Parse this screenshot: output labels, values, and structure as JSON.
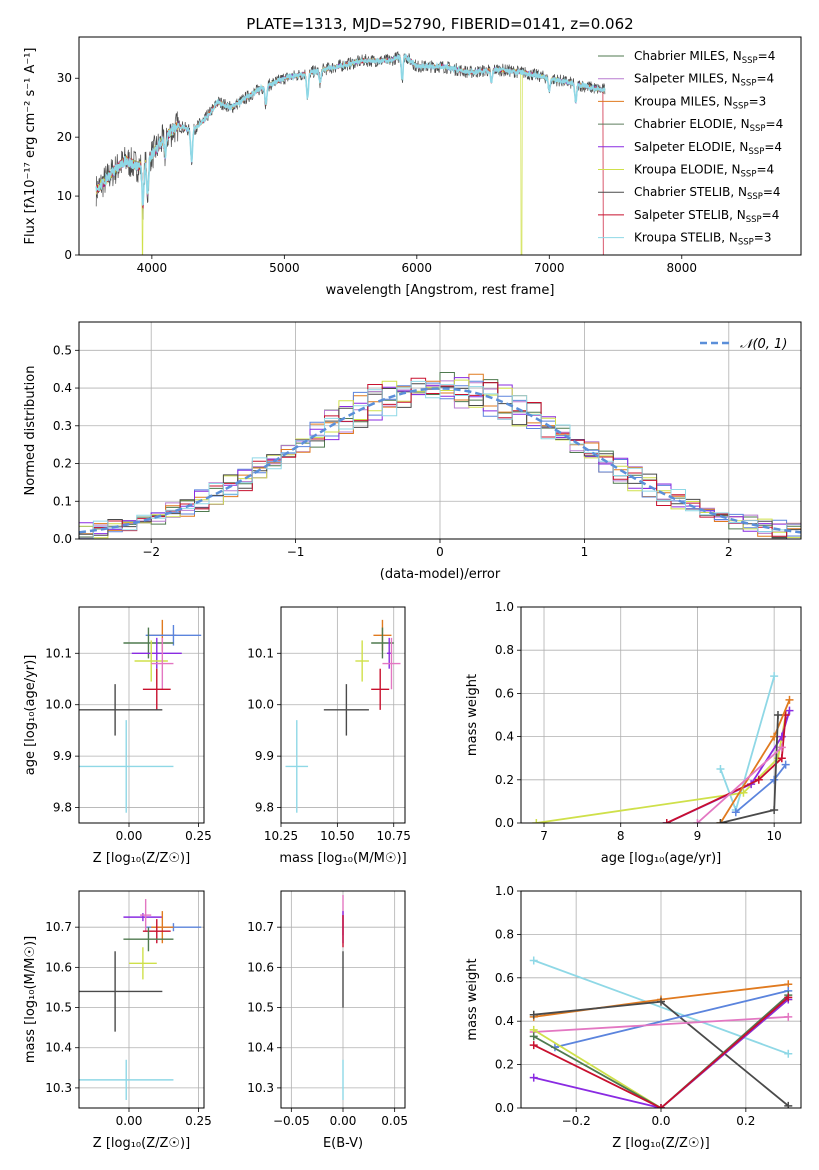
{
  "title": "PLATE=1313, MJD=52790, FIBERID=0141, z=0.062",
  "colors": {
    "chabrier_miles": "#4f7a4f",
    "salpeter_miles": "#b87bd0",
    "kroupa_miles": "#e07a1f",
    "chabrier_elodie": "#5d7d5d",
    "salpeter_elodie": "#8a2be2",
    "kroupa_elodie": "#cfe04a",
    "chabrier_stelib": "#4a4a4a",
    "salpeter_stelib": "#c8102e",
    "kroupa_stelib": "#8fd8e6",
    "pink": "#e377c2",
    "blue": "#5b84dd",
    "normal_curve": "#5b8fd9",
    "axis": "#000000",
    "grid": "#b0b0b0"
  },
  "chart_data": [
    {
      "id": "spectrum",
      "type": "line",
      "xlabel": "wavelength [Angstrom, rest frame]",
      "ylabel": "Flux [fλ10⁻¹⁷ erg cm⁻² s⁻¹ A⁻¹]",
      "xlim": [
        3450,
        8900
      ],
      "ylim": [
        0,
        37
      ],
      "xticks": [
        4000,
        5000,
        6000,
        7000,
        8000
      ],
      "yticks": [
        0,
        10,
        20,
        30
      ],
      "grid": false,
      "legend": [
        {
          "label": "Chabrier MILES, N",
          "sub": "SSP",
          "suffix": "=4",
          "color_key": "chabrier_miles"
        },
        {
          "label": "Salpeter MILES, N",
          "sub": "SSP",
          "suffix": "=4",
          "color_key": "salpeter_miles"
        },
        {
          "label": "Kroupa MILES, N",
          "sub": "SSP",
          "suffix": "=3",
          "color_key": "kroupa_miles"
        },
        {
          "label": "Chabrier ELODIE, N",
          "sub": "SSP",
          "suffix": "=4",
          "color_key": "chabrier_elodie"
        },
        {
          "label": "Salpeter ELODIE, N",
          "sub": "SSP",
          "suffix": "=4",
          "color_key": "salpeter_elodie"
        },
        {
          "label": "Kroupa ELODIE, N",
          "sub": "SSP",
          "suffix": "=4",
          "color_key": "kroupa_elodie"
        },
        {
          "label": "Chabrier STELIB, N",
          "sub": "SSP",
          "suffix": "=4",
          "color_key": "chabrier_stelib"
        },
        {
          "label": "Salpeter STELIB, N",
          "sub": "SSP",
          "suffix": "=4",
          "color_key": "salpeter_stelib"
        },
        {
          "label": "Kroupa STELIB, N",
          "sub": "SSP",
          "suffix": "=3",
          "color_key": "kroupa_stelib"
        }
      ],
      "legend_position": "top-right",
      "continuum": {
        "x": [
          3580,
          3700,
          3800,
          3900,
          4000,
          4100,
          4200,
          4300,
          4400,
          4500,
          4600,
          4800,
          5000,
          5200,
          5400,
          5600,
          5800,
          5900,
          6000,
          6200,
          6400,
          6600,
          6800,
          7000,
          7200,
          7400
        ],
        "y": [
          11,
          14,
          16,
          15,
          17,
          20,
          22,
          21,
          23,
          26,
          25,
          28,
          30,
          31,
          32,
          33,
          33,
          34,
          32,
          32,
          31,
          31.5,
          31,
          30,
          29,
          28
        ]
      },
      "absorption_lines": [
        {
          "x": 3933,
          "depth": 7
        },
        {
          "x": 3968,
          "depth": 6
        },
        {
          "x": 4101,
          "depth": 3
        },
        {
          "x": 4300,
          "depth": 5
        },
        {
          "x": 4861,
          "depth": 3
        },
        {
          "x": 5175,
          "depth": 4
        },
        {
          "x": 5270,
          "depth": 2
        },
        {
          "x": 5890,
          "depth": 4
        },
        {
          "x": 6563,
          "depth": 2
        },
        {
          "x": 7000,
          "depth": 2
        },
        {
          "x": 7200,
          "depth": 3
        }
      ],
      "dropouts": [
        {
          "x": 3930,
          "series": "kroupa_elodie"
        },
        {
          "x": 6790,
          "series": "kroupa_elodie"
        },
        {
          "x": 7410,
          "series": "salpeter_stelib"
        }
      ]
    },
    {
      "id": "residual_hist",
      "type": "histogram",
      "xlabel": "(data-model)/error",
      "ylabel": "Normed distribution",
      "xlim": [
        -2.5,
        2.5
      ],
      "ylim": [
        0,
        0.575
      ],
      "xticks": [
        -2,
        -1,
        0,
        1,
        2
      ],
      "yticks": [
        0.0,
        0.1,
        0.2,
        0.3,
        0.4,
        0.5
      ],
      "grid": true,
      "bin_width": 0.1,
      "reference": {
        "label": "𝒩(0, 1)",
        "mean": 0,
        "sigma": 1,
        "style": "dashed"
      },
      "series": [
        {
          "color_key": "chabrier_miles",
          "offset": 0.0
        },
        {
          "color_key": "salpeter_miles",
          "offset": 0.3
        },
        {
          "color_key": "kroupa_miles",
          "offset": 0.6
        },
        {
          "color_key": "blue",
          "offset": 0.9
        },
        {
          "color_key": "salpeter_elodie",
          "offset": 1.2
        },
        {
          "color_key": "kroupa_elodie",
          "offset": 1.5
        },
        {
          "color_key": "chabrier_stelib",
          "offset": 1.8
        },
        {
          "color_key": "salpeter_stelib",
          "offset": 2.1
        },
        {
          "color_key": "kroupa_stelib",
          "offset": 2.4
        }
      ]
    },
    {
      "id": "age_vs_z",
      "type": "errorbar",
      "xlabel": "Z [log₁₀(Z/Z☉)]",
      "ylabel": "age  [log₁₀(age/yr)]",
      "xlim": [
        -0.18,
        0.27
      ],
      "ylim": [
        9.77,
        10.19
      ],
      "xticks": [
        -0.25,
        0.0,
        0.25
      ],
      "xticklabels": [
        "0.25",
        "0.00",
        "0.25"
      ],
      "yticks": [
        9.8,
        9.9,
        10.0,
        10.1
      ],
      "grid": true,
      "points": [
        {
          "x": 0.12,
          "y": 10.135,
          "xerr": 0.05,
          "yerr": 0.03,
          "color_key": "kroupa_miles"
        },
        {
          "x": 0.16,
          "y": 10.135,
          "xerr": 0.1,
          "yerr": 0.02,
          "color_key": "blue"
        },
        {
          "x": 0.07,
          "y": 10.12,
          "xerr": 0.09,
          "yerr": 0.03,
          "color_key": "chabrier_miles"
        },
        {
          "x": 0.1,
          "y": 10.1,
          "xerr": 0.09,
          "yerr": 0.03,
          "color_key": "salpeter_elodie"
        },
        {
          "x": 0.08,
          "y": 10.085,
          "xerr": 0.06,
          "yerr": 0.04,
          "color_key": "kroupa_elodie"
        },
        {
          "x": 0.12,
          "y": 10.08,
          "xerr": 0.04,
          "yerr": 0.05,
          "color_key": "pink"
        },
        {
          "x": 0.1,
          "y": 10.03,
          "xerr": 0.05,
          "yerr": 0.04,
          "color_key": "salpeter_stelib"
        },
        {
          "x": -0.05,
          "y": 9.99,
          "xerr": 0.17,
          "yerr": 0.05,
          "color_key": "chabrier_stelib"
        },
        {
          "x": -0.01,
          "y": 9.88,
          "xerr": 0.17,
          "yerr": 0.09,
          "color_key": "kroupa_stelib"
        }
      ]
    },
    {
      "id": "age_vs_mass",
      "type": "errorbar",
      "xlabel": "mass [log₁₀(M/M☉)]",
      "ylabel": "",
      "xlim": [
        10.25,
        10.8
      ],
      "ylim": [
        9.77,
        10.19
      ],
      "xticks": [
        10.25,
        10.5,
        10.75
      ],
      "xticklabels": [
        "10.25",
        "10.50",
        "10.75"
      ],
      "yticks": [
        9.8,
        9.9,
        10.0,
        10.1
      ],
      "grid": true,
      "points": [
        {
          "x": 10.7,
          "y": 10.135,
          "xerr": 0.04,
          "yerr": 0.03,
          "color_key": "kroupa_miles"
        },
        {
          "x": 10.7,
          "y": 10.12,
          "xerr": 0.05,
          "yerr": 0.03,
          "color_key": "chabrier_miles"
        },
        {
          "x": 10.73,
          "y": 10.1,
          "xerr": 0.01,
          "yerr": 0.03,
          "color_key": "salpeter_elodie"
        },
        {
          "x": 10.61,
          "y": 10.085,
          "xerr": 0.03,
          "yerr": 0.04,
          "color_key": "kroupa_elodie"
        },
        {
          "x": 10.74,
          "y": 10.08,
          "xerr": 0.04,
          "yerr": 0.05,
          "color_key": "pink"
        },
        {
          "x": 10.69,
          "y": 10.03,
          "xerr": 0.04,
          "yerr": 0.04,
          "color_key": "salpeter_stelib"
        },
        {
          "x": 10.54,
          "y": 9.99,
          "xerr": 0.1,
          "yerr": 0.05,
          "color_key": "chabrier_stelib"
        },
        {
          "x": 10.32,
          "y": 9.88,
          "xerr": 0.05,
          "yerr": 0.09,
          "color_key": "kroupa_stelib"
        }
      ]
    },
    {
      "id": "mass_weight_vs_age",
      "type": "line",
      "xlabel": "age  [log₁₀(age/yr)]",
      "ylabel": "mass weight",
      "xlim": [
        6.7,
        10.35
      ],
      "ylim": [
        0,
        1
      ],
      "xticks": [
        7,
        8,
        9,
        10
      ],
      "yticks": [
        0.0,
        0.2,
        0.4,
        0.6,
        0.8,
        1.0
      ],
      "grid": true,
      "series": [
        {
          "color_key": "kroupa_stelib",
          "x": [
            9.3,
            9.5,
            10.0
          ],
          "y": [
            0.25,
            0.06,
            0.68
          ]
        },
        {
          "color_key": "kroupa_elodie",
          "x": [
            6.9,
            9.6,
            10.05,
            10.15
          ],
          "y": [
            0.0,
            0.14,
            0.3,
            0.5
          ]
        },
        {
          "color_key": "salpeter_elodie",
          "x": [
            8.6,
            9.7,
            10.1,
            10.2
          ],
          "y": [
            0.0,
            0.18,
            0.4,
            0.52
          ]
        },
        {
          "color_key": "salpeter_stelib",
          "x": [
            8.6,
            9.8,
            10.1,
            10.15
          ],
          "y": [
            0.0,
            0.2,
            0.3,
            0.5
          ]
        },
        {
          "color_key": "kroupa_miles",
          "x": [
            9.3,
            10.0,
            10.2
          ],
          "y": [
            0.0,
            0.4,
            0.57
          ]
        },
        {
          "color_key": "blue",
          "x": [
            9.5,
            10.0,
            10.15
          ],
          "y": [
            0.05,
            0.2,
            0.27
          ]
        },
        {
          "color_key": "chabrier_stelib",
          "x": [
            9.3,
            10.0,
            10.05
          ],
          "y": [
            0.0,
            0.06,
            0.5
          ]
        },
        {
          "color_key": "pink",
          "x": [
            9.0,
            10.1
          ],
          "y": [
            0.0,
            0.35
          ]
        }
      ]
    },
    {
      "id": "mass_vs_z",
      "type": "errorbar",
      "xlabel": "Z [log₁₀(Z/Z☉)]",
      "ylabel": "mass [log₁₀(M/M☉)]",
      "xlim": [
        -0.18,
        0.27
      ],
      "ylim": [
        10.25,
        10.79
      ],
      "xticks": [
        -0.25,
        0.0,
        0.25
      ],
      "xticklabels": [
        "0.25",
        "0.00",
        "0.25"
      ],
      "yticks": [
        10.3,
        10.4,
        10.5,
        10.6,
        10.7
      ],
      "grid": true,
      "points": [
        {
          "x": 0.16,
          "y": 10.7,
          "xerr": 0.1,
          "yerr": 0.01,
          "color_key": "blue"
        },
        {
          "x": 0.05,
          "y": 10.725,
          "xerr": 0.07,
          "yerr": 0.01,
          "color_key": "salpeter_elodie"
        },
        {
          "x": 0.06,
          "y": 10.73,
          "xerr": 0.02,
          "yerr": 0.04,
          "color_key": "pink"
        },
        {
          "x": 0.12,
          "y": 10.7,
          "xerr": 0.04,
          "yerr": 0.04,
          "color_key": "kroupa_miles"
        },
        {
          "x": 0.1,
          "y": 10.69,
          "xerr": 0.05,
          "yerr": 0.03,
          "color_key": "salpeter_stelib"
        },
        {
          "x": 0.07,
          "y": 10.67,
          "xerr": 0.09,
          "yerr": 0.03,
          "color_key": "chabrier_miles"
        },
        {
          "x": 0.05,
          "y": 10.61,
          "xerr": 0.05,
          "yerr": 0.04,
          "color_key": "kroupa_elodie"
        },
        {
          "x": -0.05,
          "y": 10.54,
          "xerr": 0.17,
          "yerr": 0.1,
          "color_key": "chabrier_stelib"
        },
        {
          "x": -0.01,
          "y": 10.32,
          "xerr": 0.17,
          "yerr": 0.05,
          "color_key": "kroupa_stelib"
        }
      ]
    },
    {
      "id": "mass_vs_ebv",
      "type": "errorbar",
      "xlabel": "E(B-V)",
      "ylabel": "",
      "xlim": [
        -0.06,
        0.06
      ],
      "ylim": [
        10.25,
        10.79
      ],
      "xticks": [
        -0.05,
        0.0,
        0.05
      ],
      "xticklabels": [
        "−0.05",
        "0.00",
        "0.05"
      ],
      "yticks": [
        10.3,
        10.4,
        10.5,
        10.6,
        10.7
      ],
      "grid": true,
      "points": [
        {
          "x": 0.0,
          "y": 10.73,
          "xerr": 0,
          "yerr": 0.05,
          "color_key": "pink"
        },
        {
          "x": 0.0,
          "y": 10.7,
          "xerr": 0,
          "yerr": 0.04,
          "color_key": "salpeter_elodie"
        },
        {
          "x": 0.0,
          "y": 10.69,
          "xerr": 0,
          "yerr": 0.04,
          "color_key": "salpeter_stelib"
        },
        {
          "x": 0.0,
          "y": 10.57,
          "xerr": 0,
          "yerr": 0.07,
          "color_key": "chabrier_stelib"
        },
        {
          "x": 0.0,
          "y": 10.32,
          "xerr": 0,
          "yerr": 0.05,
          "color_key": "kroupa_stelib"
        }
      ]
    },
    {
      "id": "mass_weight_vs_z",
      "type": "line",
      "xlabel": "Z [log₁₀(Z/Z☉)]",
      "ylabel": "mass weight",
      "xlim": [
        -0.33,
        0.33
      ],
      "ylim": [
        0,
        1
      ],
      "xticks": [
        -0.2,
        0.0,
        0.2
      ],
      "xticklabels": [
        "−0.2",
        "0.0",
        "0.2"
      ],
      "yticks": [
        0.0,
        0.2,
        0.4,
        0.6,
        0.8,
        1.0
      ],
      "grid": true,
      "series": [
        {
          "color_key": "kroupa_stelib",
          "x": [
            -0.3,
            0.3
          ],
          "y": [
            0.68,
            0.25
          ]
        },
        {
          "color_key": "kroupa_miles",
          "x": [
            -0.3,
            0.0,
            0.3
          ],
          "y": [
            0.42,
            0.5,
            0.57
          ]
        },
        {
          "color_key": "chabrier_stelib",
          "x": [
            -0.3,
            0.0,
            0.3
          ],
          "y": [
            0.43,
            0.49,
            0.01
          ]
        },
        {
          "color_key": "blue",
          "x": [
            -0.25,
            0.3
          ],
          "y": [
            0.28,
            0.54
          ]
        },
        {
          "color_key": "pink",
          "x": [
            -0.3,
            0.3
          ],
          "y": [
            0.35,
            0.42
          ]
        },
        {
          "color_key": "kroupa_elodie",
          "x": [
            -0.3,
            0.0,
            0.3
          ],
          "y": [
            0.36,
            0.0,
            0.5
          ]
        },
        {
          "color_key": "chabrier_miles",
          "x": [
            -0.3,
            0.0,
            0.3
          ],
          "y": [
            0.33,
            0.0,
            0.52
          ]
        },
        {
          "color_key": "salpeter_elodie",
          "x": [
            -0.3,
            0.0,
            0.3
          ],
          "y": [
            0.14,
            0.0,
            0.5
          ]
        },
        {
          "color_key": "salpeter_stelib",
          "x": [
            -0.3,
            0.0,
            0.3
          ],
          "y": [
            0.29,
            0.0,
            0.51
          ]
        }
      ]
    }
  ]
}
